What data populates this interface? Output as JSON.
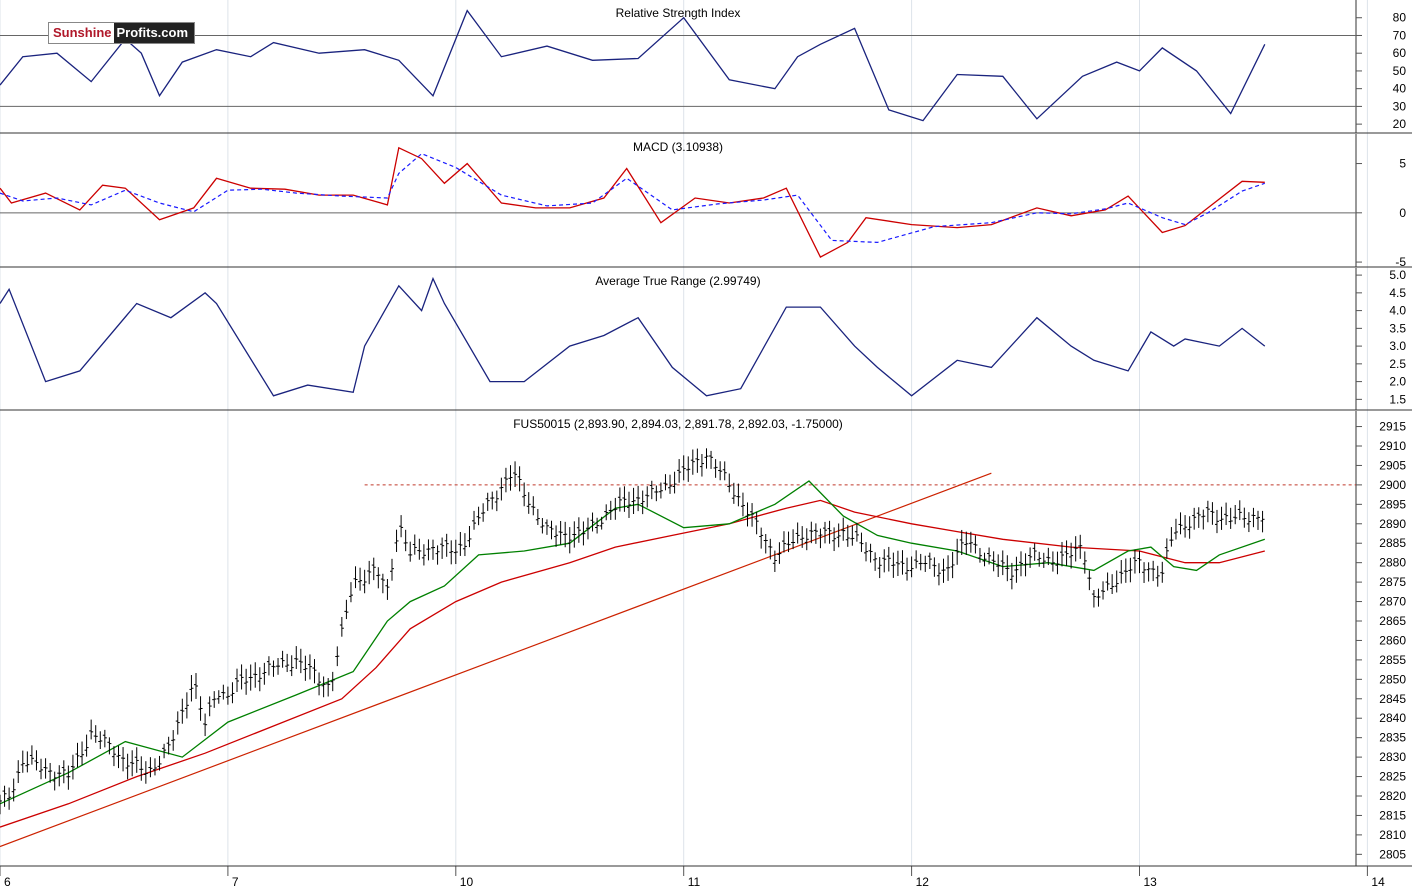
{
  "brand": {
    "part1": "Sunshine",
    "part2": "Profits.com"
  },
  "colors": {
    "price": "#000000",
    "ma_fast": "#008000",
    "ma_slow": "#cc0000",
    "rsi": "#1a237e",
    "macd": "#cc0000",
    "signal": "#1a1aff",
    "atr": "#1a237e",
    "trendline": "#cc2200",
    "resistance": "#c0392b"
  },
  "x_axis": {
    "labels": [
      "6",
      "7",
      "10",
      "11",
      "12",
      "13",
      "14"
    ]
  },
  "chart_data": [
    {
      "type": "line",
      "title": "Relative Strength Index",
      "ylim": [
        15,
        90
      ],
      "y_ticks": [
        20,
        30,
        40,
        50,
        60,
        70,
        80
      ],
      "reference_lines": [
        30,
        70
      ],
      "x": [
        0,
        0.1,
        0.25,
        0.4,
        0.55,
        0.62,
        0.7,
        0.8,
        0.95,
        1.1,
        1.2,
        1.4,
        1.6,
        1.75,
        1.9,
        2.05,
        2.2,
        2.4,
        2.6,
        2.8,
        3,
        3.2,
        3.4,
        3.5,
        3.6,
        3.75,
        3.9,
        4.05,
        4.2,
        4.4,
        4.55,
        4.75,
        4.9,
        5,
        5.1,
        5.25,
        5.4,
        5.55
      ],
      "values": [
        42,
        58,
        60,
        44,
        68,
        60,
        36,
        55,
        62,
        58,
        66,
        60,
        62,
        56,
        36,
        84,
        58,
        64,
        56,
        57,
        80,
        45,
        40,
        58,
        65,
        74,
        28,
        22,
        48,
        47,
        23,
        47,
        55,
        50,
        63,
        50,
        26,
        65
      ]
    },
    {
      "type": "line",
      "title": "MACD (3.10938)",
      "ylim": [
        -5.5,
        8
      ],
      "y_ticks": [
        -5,
        0,
        5
      ],
      "reference_lines": [
        0
      ],
      "series": [
        {
          "key": "macd",
          "x": [
            0,
            0.05,
            0.2,
            0.35,
            0.45,
            0.55,
            0.7,
            0.85,
            0.95,
            1.1,
            1.25,
            1.4,
            1.55,
            1.7,
            1.75,
            1.85,
            1.95,
            2.05,
            2.2,
            2.35,
            2.5,
            2.65,
            2.75,
            2.9,
            3.05,
            3.2,
            3.35,
            3.45,
            3.6,
            3.72,
            3.8,
            4,
            4.2,
            4.35,
            4.55,
            4.7,
            4.85,
            4.95,
            5.1,
            5.2,
            5.3,
            5.45,
            5.55
          ],
          "values": [
            2.5,
            1.0,
            2.0,
            0.3,
            2.8,
            2.5,
            -0.7,
            0.5,
            3.5,
            2.5,
            2.4,
            1.8,
            1.8,
            0.8,
            6.6,
            5.5,
            3.0,
            5.0,
            1.0,
            0.5,
            0.5,
            1.5,
            4.5,
            -1.0,
            1.5,
            1.0,
            1.5,
            2.5,
            -4.5,
            -3.0,
            -0.5,
            -1.2,
            -1.5,
            -1.2,
            0.5,
            -0.3,
            0.3,
            1.7,
            -2.0,
            -1.3,
            0.5,
            3.2,
            3.1
          ]
        },
        {
          "key": "signal",
          "x": [
            0,
            0.1,
            0.25,
            0.4,
            0.55,
            0.7,
            0.85,
            1.0,
            1.15,
            1.3,
            1.5,
            1.7,
            1.75,
            1.85,
            2.0,
            2.2,
            2.4,
            2.6,
            2.75,
            2.95,
            3.15,
            3.35,
            3.5,
            3.65,
            3.85,
            4.1,
            4.35,
            4.55,
            4.7,
            4.85,
            4.95,
            5.1,
            5.2,
            5.3,
            5.45,
            5.55
          ],
          "values": [
            2.0,
            1.2,
            1.5,
            0.8,
            2.3,
            1.0,
            0.1,
            2.3,
            2.4,
            2.0,
            1.7,
            1.5,
            4.0,
            6.0,
            4.6,
            1.8,
            0.7,
            1.0,
            3.5,
            0.3,
            0.9,
            1.3,
            1.8,
            -2.8,
            -3.0,
            -1.4,
            -1.0,
            0.0,
            -0.1,
            0.4,
            1.0,
            -0.5,
            -1.2,
            0.0,
            2.2,
            3.0
          ]
        }
      ]
    },
    {
      "type": "line",
      "title": "Average True Range (2.99749)",
      "ylim": [
        1.2,
        5.2
      ],
      "y_ticks": [
        1.5,
        2.0,
        2.5,
        3.0,
        3.5,
        4.0,
        4.5,
        5.0
      ],
      "x": [
        0,
        0.04,
        0.2,
        0.35,
        0.6,
        0.75,
        0.9,
        0.95,
        1.2,
        1.35,
        1.55,
        1.6,
        1.75,
        1.85,
        1.9,
        1.95,
        2.15,
        2.3,
        2.5,
        2.65,
        2.8,
        2.95,
        3.1,
        3.25,
        3.45,
        3.6,
        3.75,
        3.85,
        4.0,
        4.2,
        4.35,
        4.55,
        4.7,
        4.8,
        4.95,
        5.05,
        5.15,
        5.2,
        5.35,
        5.45,
        5.55
      ],
      "values": [
        4.2,
        4.6,
        2.0,
        2.3,
        4.2,
        3.8,
        4.5,
        4.2,
        1.6,
        1.9,
        1.7,
        3.0,
        4.7,
        4.0,
        4.9,
        4.2,
        2.0,
        2.0,
        3.0,
        3.3,
        3.8,
        2.4,
        1.6,
        1.8,
        4.1,
        4.1,
        3.0,
        2.4,
        1.6,
        2.6,
        2.4,
        3.8,
        3.0,
        2.6,
        2.3,
        3.4,
        3.0,
        3.2,
        3.0,
        3.5,
        3.0
      ]
    },
    {
      "type": "line",
      "title": "FUS50015 (2,893.90, 2,894.03, 2,891.78, 2,892.03, -1.75000)",
      "ylim": [
        2802,
        2919
      ],
      "y_ticks": [
        2805,
        2810,
        2815,
        2820,
        2825,
        2830,
        2835,
        2840,
        2845,
        2850,
        2855,
        2860,
        2865,
        2870,
        2875,
        2880,
        2885,
        2890,
        2895,
        2900,
        2905,
        2910,
        2915
      ],
      "resistance": 2900,
      "trendline": [
        [
          0,
          2807
        ],
        [
          4.35,
          2903
        ]
      ],
      "series": [
        {
          "key": "price",
          "x": [
            0,
            0.05,
            0.1,
            0.2,
            0.3,
            0.4,
            0.5,
            0.55,
            0.65,
            0.75,
            0.85,
            0.9,
            0.95,
            1.0,
            1.05,
            1.15,
            1.3,
            1.45,
            1.55,
            1.65,
            1.7,
            1.75,
            1.8,
            1.9,
            2.0,
            2.05,
            2.15,
            2.25,
            2.4,
            2.55,
            2.65,
            2.75,
            2.85,
            2.95,
            3.1,
            3.25,
            3.4,
            3.55,
            3.65,
            3.7,
            3.75,
            3.85,
            3.95,
            4.05,
            4.15,
            4.25,
            4.35,
            4.45,
            4.55,
            4.65,
            4.75,
            4.8,
            4.9,
            5.0,
            5.1,
            5.15,
            5.2,
            5.25,
            5.3,
            5.35,
            5.4,
            5.5,
            5.55
          ],
          "values": [
            2818,
            2821,
            2829,
            2827,
            2825,
            2836,
            2832,
            2829,
            2826,
            2833,
            2850,
            2838,
            2847,
            2846,
            2849,
            2852,
            2855,
            2848,
            2875,
            2878,
            2873,
            2890,
            2882,
            2884,
            2883,
            2886,
            2896,
            2903,
            2888,
            2887,
            2892,
            2896,
            2897,
            2901,
            2908,
            2896,
            2882,
            2888,
            2887,
            2888,
            2886,
            2881,
            2879,
            2880,
            2878,
            2886,
            2880,
            2878,
            2882,
            2880,
            2885,
            2870,
            2876,
            2880,
            2877,
            2888,
            2890,
            2891,
            2893,
            2892,
            2891,
            2892,
            2892
          ]
        },
        {
          "key": "ma_fast",
          "x": [
            0,
            0.3,
            0.55,
            0.8,
            1.0,
            1.3,
            1.55,
            1.7,
            1.8,
            1.95,
            2.1,
            2.3,
            2.5,
            2.7,
            2.8,
            3.0,
            3.2,
            3.4,
            3.55,
            3.7,
            3.85,
            4.0,
            4.2,
            4.4,
            4.6,
            4.8,
            4.95,
            5.05,
            5.15,
            5.25,
            5.35,
            5.55
          ],
          "values": [
            2818,
            2826,
            2834,
            2830,
            2839,
            2846,
            2852,
            2865,
            2870,
            2874,
            2882,
            2883,
            2885,
            2894,
            2895,
            2889,
            2890,
            2895,
            2901,
            2892,
            2887,
            2885,
            2883,
            2879,
            2880,
            2878,
            2883,
            2884,
            2879,
            2878,
            2882,
            2886
          ]
        },
        {
          "key": "ma_slow",
          "x": [
            0,
            0.3,
            0.6,
            0.9,
            1.2,
            1.5,
            1.65,
            1.8,
            2.0,
            2.2,
            2.5,
            2.7,
            2.95,
            3.2,
            3.45,
            3.6,
            3.75,
            4.0,
            4.2,
            4.4,
            4.7,
            5.0,
            5.2,
            5.35,
            5.55
          ],
          "values": [
            2812,
            2818,
            2825,
            2831,
            2838,
            2845,
            2853,
            2863,
            2870,
            2875,
            2880,
            2884,
            2887,
            2890,
            2894,
            2896,
            2893,
            2890,
            2888,
            2886,
            2884,
            2883,
            2880,
            2880,
            2883
          ]
        }
      ]
    }
  ]
}
